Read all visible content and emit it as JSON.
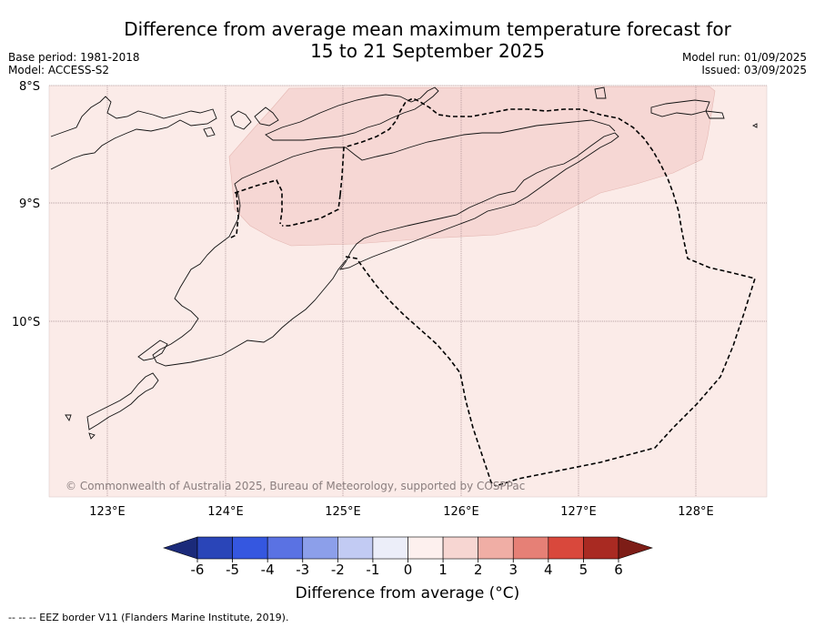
{
  "title": {
    "line1": "Difference from average mean maximum temperature forecast for",
    "line2": "15 to 21 September 2025"
  },
  "meta_left": {
    "base_period": "Base period: 1981-2018",
    "model": "Model: ACCESS-S2"
  },
  "meta_right": {
    "model_run": "Model run: 01/09/2025",
    "issued": "Issued: 03/09/2025"
  },
  "map": {
    "lat_labels": [
      "8°S",
      "9°S",
      "10°S"
    ],
    "lon_labels": [
      "123°E",
      "124°E",
      "125°E",
      "126°E",
      "127°E",
      "128°E"
    ],
    "copyright": "© Commonwealth of Australia 2025, Bureau of Meteorology, supported by COSPPac",
    "background_color": "#fbebe8",
    "anomaly_color": "#f6d7d4",
    "extent": {
      "lon_min": 122.5,
      "lon_max": 128.6,
      "lat_min": -11.5,
      "lat_max": -8.0
    }
  },
  "colorbar": {
    "ticks": [
      "-6",
      "-5",
      "-4",
      "-3",
      "-2",
      "-1",
      "0",
      "1",
      "2",
      "3",
      "4",
      "5",
      "6"
    ],
    "colors": [
      "#1b2a7a",
      "#2a45b8",
      "#3557e0",
      "#5a72e3",
      "#8c9fea",
      "#c2cbf3",
      "#eceef9",
      "#fdf0ee",
      "#f7d6d2",
      "#f0aea5",
      "#e68076",
      "#d9483c",
      "#a92a22",
      "#7d1d17"
    ],
    "label": "Difference from average (°C)"
  },
  "footer": "-- -- -- EEZ border V11 (Flanders Marine Institute, 2019)."
}
